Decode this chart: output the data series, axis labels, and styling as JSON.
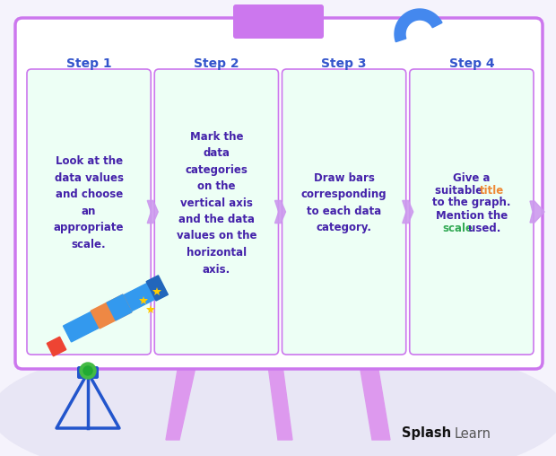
{
  "bg_color": "#f5f3fc",
  "board_bg": "#ffffff",
  "board_border": "#cc77ee",
  "card_bg": "#edfff5",
  "card_border": "#cc77ee",
  "steps": [
    "Step 1",
    "Step 2",
    "Step 3",
    "Step 4"
  ],
  "step_color": "#3355cc",
  "step_fontsize": 10,
  "text_color": "#4422aa",
  "text_fontsize": 8.5,
  "arrow_color": "#cc99ee",
  "title_word_color": "#ee8833",
  "scale_word_color": "#33aa55",
  "board_top_tab_color": "#cc77ee",
  "hook_color": "#4488ee",
  "leg_color": "#dd99ee",
  "floor_color": "#e2dfee",
  "splash_bold_color": "#222222",
  "learn_color": "#555555",
  "texts_1_3": [
    "Look at the\ndata values\nand choose\nan\nappropriate\nscale.",
    "Mark the\ndata\ncategories\non the\nvertical axis\nand the data\nvalues on the\nhorizontal\naxis.",
    "Draw bars\ncorresponding\nto each data\ncategory."
  ]
}
